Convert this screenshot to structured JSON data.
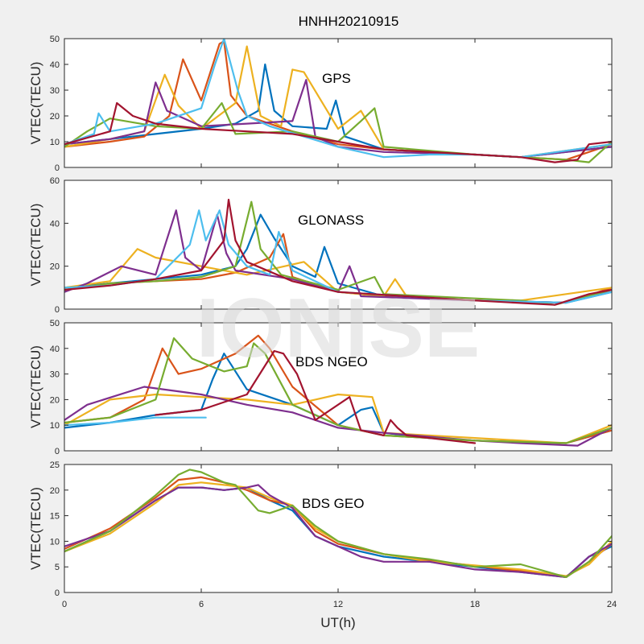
{
  "figure": {
    "title": "HNHH20210915",
    "watermark": "IONISE",
    "xlabel": "UT(h)",
    "ylabel": "VTEC(TECU)"
  },
  "colors": [
    "#0072BD",
    "#D95319",
    "#EDB120",
    "#7E2F8E",
    "#77AC30",
    "#4DBEEE",
    "#A2142F"
  ],
  "chart_data": [
    {
      "type": "line",
      "panel": "GPS",
      "label": "GPS",
      "xlim": [
        0,
        24
      ],
      "ylim": [
        0,
        50
      ],
      "xticks": [
        0,
        6,
        12,
        18,
        24
      ],
      "yticks": [
        0,
        10,
        20,
        30,
        40,
        50
      ],
      "series": [
        {
          "color": "#0072BD",
          "x": [
            0,
            2,
            4,
            6,
            7.5,
            8.5,
            8.8,
            9.2,
            10,
            11.5,
            11.9,
            12.3,
            14,
            18,
            20,
            24
          ],
          "y": [
            9,
            11,
            13,
            15,
            17,
            22,
            40,
            22,
            16,
            15,
            26,
            12,
            7,
            5,
            4,
            8
          ]
        },
        {
          "color": "#D95319",
          "x": [
            0,
            2,
            3.5,
            4.6,
            5.2,
            6,
            6.8,
            7,
            7.3,
            8,
            10,
            12,
            14,
            18,
            20,
            22,
            24
          ],
          "y": [
            8,
            10,
            12,
            20,
            42,
            26,
            48,
            49,
            28,
            20,
            14,
            9,
            7,
            5,
            4,
            3,
            9
          ]
        },
        {
          "color": "#EDB120",
          "x": [
            0,
            2,
            3.5,
            4.4,
            5,
            6,
            7.5,
            8,
            8.6,
            9.5,
            10,
            10.5,
            12,
            13,
            14,
            18,
            20,
            24
          ],
          "y": [
            8,
            11,
            14,
            36,
            24,
            15,
            25,
            47,
            20,
            16,
            38,
            37,
            15,
            22,
            7,
            5,
            4,
            9
          ]
        },
        {
          "color": "#7E2F8E",
          "x": [
            0,
            2,
            3.5,
            4,
            4.5,
            6,
            8,
            10,
            10.6,
            11,
            12,
            14,
            18,
            20,
            24
          ],
          "y": [
            9,
            11,
            14,
            33,
            22,
            16,
            17,
            18,
            34,
            12,
            8,
            6,
            5,
            4,
            8
          ]
        },
        {
          "color": "#77AC30",
          "x": [
            0,
            1,
            2,
            4,
            6,
            6.9,
            7.5,
            10,
            12,
            13,
            13.6,
            14,
            18,
            22,
            23,
            24
          ],
          "y": [
            8,
            14,
            19,
            16,
            15,
            25,
            13,
            14,
            10,
            18,
            23,
            8,
            5,
            3,
            2,
            10
          ]
        },
        {
          "color": "#4DBEEE",
          "x": [
            0,
            1.3,
            1.5,
            2,
            4,
            6,
            6.6,
            7,
            7.6,
            8,
            9,
            12,
            14,
            16,
            18,
            20,
            24
          ],
          "y": [
            9,
            13,
            21,
            14,
            17,
            23,
            40,
            50,
            30,
            20,
            16,
            8,
            4,
            5,
            5,
            4,
            9
          ]
        },
        {
          "color": "#A2142F",
          "x": [
            0,
            2,
            2.3,
            3,
            4,
            6,
            8,
            10,
            12,
            14,
            18,
            20,
            21.5,
            22.5,
            23,
            24
          ],
          "y": [
            9,
            14,
            25,
            20,
            17,
            15,
            14,
            13,
            10,
            7,
            5,
            4,
            2,
            3,
            9,
            10
          ]
        }
      ]
    },
    {
      "type": "line",
      "panel": "GLONASS",
      "label": "GLONASS",
      "xlim": [
        0,
        24
      ],
      "ylim": [
        0,
        60
      ],
      "xticks": [
        0,
        6,
        12,
        18,
        24
      ],
      "yticks": [
        0,
        20,
        40,
        60
      ],
      "series": [
        {
          "color": "#0072BD",
          "x": [
            0,
            2,
            4,
            6,
            7.5,
            8,
            8.6,
            9.2,
            10,
            11,
            11.4,
            12,
            14,
            18,
            22,
            24
          ],
          "y": [
            10,
            12,
            14,
            16,
            20,
            28,
            44,
            33,
            20,
            15,
            29,
            12,
            6,
            4,
            3,
            8
          ]
        },
        {
          "color": "#D95319",
          "x": [
            0,
            2,
            4,
            6,
            7.5,
            9,
            9.6,
            10,
            12,
            14,
            18,
            22,
            24
          ],
          "y": [
            9,
            12,
            13,
            14,
            17,
            24,
            35,
            15,
            8,
            6,
            4,
            3,
            10
          ]
        },
        {
          "color": "#EDB120",
          "x": [
            0,
            2,
            3.2,
            4,
            6,
            8,
            10.5,
            12,
            14,
            14.5,
            15,
            18,
            20,
            24
          ],
          "y": [
            10,
            13,
            28,
            24,
            20,
            16,
            22,
            8,
            6,
            14,
            6,
            4,
            4,
            10
          ]
        },
        {
          "color": "#7E2F8E",
          "x": [
            0,
            1,
            2.5,
            4,
            4.9,
            5.3,
            6,
            6.7,
            7.1,
            7.5,
            10,
            12,
            12.5,
            13,
            18,
            22,
            24
          ],
          "y": [
            8,
            12,
            20,
            16,
            46,
            24,
            18,
            44,
            26,
            18,
            14,
            8,
            20,
            6,
            4,
            3,
            9
          ]
        },
        {
          "color": "#77AC30",
          "x": [
            0,
            2,
            4,
            6,
            7.5,
            8.2,
            8.6,
            9.5,
            12,
            13.6,
            14,
            18,
            20,
            21.5,
            24
          ],
          "y": [
            9,
            12,
            13,
            15,
            20,
            50,
            28,
            16,
            9,
            15,
            7,
            5,
            4,
            2,
            9
          ]
        },
        {
          "color": "#4DBEEE",
          "x": [
            0,
            2,
            4,
            5.5,
            5.9,
            6.2,
            6.8,
            7.2,
            8,
            9,
            9.4,
            10,
            12,
            18,
            22,
            24
          ],
          "y": [
            10,
            11,
            14,
            30,
            46,
            32,
            46,
            30,
            20,
            16,
            36,
            18,
            8,
            4,
            3,
            8
          ]
        },
        {
          "color": "#A2142F",
          "x": [
            0,
            2,
            4,
            6,
            7,
            7.2,
            7.5,
            8,
            10,
            12,
            18,
            21.5,
            23,
            24
          ],
          "y": [
            9,
            11,
            14,
            18,
            32,
            51,
            32,
            22,
            13,
            8,
            4,
            2,
            7,
            9
          ]
        }
      ]
    },
    {
      "type": "line",
      "panel": "BDS NGEO",
      "label": "BDS NGEO",
      "xlim": [
        0,
        24
      ],
      "ylim": [
        0,
        50
      ],
      "xticks": [
        0,
        6,
        12,
        18,
        24
      ],
      "yticks": [
        0,
        10,
        20,
        30,
        40,
        50
      ],
      "series": [
        {
          "color": "#0072BD",
          "x": [
            0,
            2,
            4,
            6,
            6.5,
            7,
            8,
            10,
            12,
            13,
            13.5,
            14,
            16,
            18,
            22,
            24
          ],
          "y": [
            9,
            11,
            14,
            16,
            28,
            38,
            24,
            18,
            10,
            16,
            17,
            7,
            5,
            4,
            3,
            8
          ]
        },
        {
          "color": "#D95319",
          "x": [
            0,
            2,
            3.5,
            4.3,
            5,
            6,
            7.5,
            8.5,
            9,
            10,
            12,
            14,
            18,
            22,
            24
          ],
          "y": [
            11,
            13,
            20,
            40,
            30,
            32,
            38,
            45,
            40,
            25,
            10,
            6,
            4,
            3,
            8
          ]
        },
        {
          "color": "#EDB120",
          "x": [
            0,
            2,
            4,
            6,
            8,
            10,
            11,
            12,
            13.5,
            14,
            18,
            22,
            24
          ],
          "y": [
            10,
            20,
            22,
            21,
            20,
            18,
            20,
            22,
            21,
            7,
            5,
            3,
            10
          ]
        },
        {
          "color": "#7E2F8E",
          "x": [
            0,
            1,
            3.5,
            6,
            8,
            10,
            12,
            14,
            18,
            20,
            22.5,
            24
          ],
          "y": [
            12,
            18,
            25,
            22,
            18,
            15,
            9,
            7,
            4,
            3,
            2,
            9
          ]
        },
        {
          "color": "#77AC30",
          "x": [
            0,
            2,
            4,
            4.8,
            5.6,
            7,
            8,
            8.3,
            8.8,
            10,
            12,
            14,
            18,
            22,
            24
          ],
          "y": [
            11,
            13,
            20,
            44,
            36,
            31,
            33,
            42,
            38,
            18,
            10,
            6,
            4,
            3,
            9
          ]
        },
        {
          "color": "#4DBEEE",
          "x": [
            0,
            2,
            4,
            6.2
          ],
          "y": [
            10,
            11,
            13,
            13
          ]
        },
        {
          "color": "#A2142F",
          "x": [
            4,
            6,
            8,
            9.2,
            9.6,
            10.2,
            11,
            12.5,
            13,
            14,
            14.3,
            14.6,
            15,
            18
          ],
          "y": [
            14,
            16,
            22,
            39,
            38,
            30,
            12,
            21,
            8,
            6,
            12,
            9,
            6,
            3
          ]
        }
      ]
    },
    {
      "type": "line",
      "panel": "BDS GEO",
      "label": "BDS GEO",
      "xlim": [
        0,
        24
      ],
      "ylim": [
        0,
        25
      ],
      "xticks": [
        0,
        6,
        12,
        18,
        24
      ],
      "yticks": [
        0,
        5,
        10,
        15,
        20,
        25
      ],
      "series": [
        {
          "color": "#0072BD",
          "x": [
            0,
            2,
            4,
            5,
            6,
            7,
            8,
            9,
            10,
            11,
            12,
            14,
            16,
            18,
            20,
            22,
            23,
            24
          ],
          "y": [
            8,
            12,
            18,
            20.5,
            20.5,
            20,
            20.5,
            18,
            16,
            11,
            9,
            7,
            6,
            5,
            4,
            3,
            7,
            9
          ]
        },
        {
          "color": "#D95319",
          "x": [
            0,
            2,
            4,
            5,
            6,
            7,
            8,
            9,
            10,
            11,
            12,
            14,
            16,
            18,
            20,
            22,
            23,
            24
          ],
          "y": [
            8.5,
            12.5,
            18.5,
            22,
            22.5,
            21.5,
            20,
            18,
            17,
            12,
            9.5,
            7.5,
            6.2,
            5.2,
            4.2,
            3,
            6,
            9.5
          ]
        },
        {
          "color": "#EDB120",
          "x": [
            0,
            2,
            4,
            5,
            6,
            7,
            8,
            9,
            10,
            11,
            12,
            14,
            16,
            18,
            20,
            22,
            23,
            24
          ],
          "y": [
            8,
            11.5,
            17.5,
            21,
            21.5,
            21,
            20.5,
            18.5,
            17,
            12.5,
            10,
            7.5,
            6,
            5.3,
            4.5,
            3.2,
            5.5,
            10
          ]
        },
        {
          "color": "#7E2F8E",
          "x": [
            0,
            2,
            4,
            5,
            6,
            7,
            8,
            8.5,
            9,
            10,
            11,
            12,
            13,
            14,
            16,
            18,
            20,
            22,
            23,
            24
          ],
          "y": [
            9,
            12,
            18,
            20.5,
            20.5,
            20,
            20.5,
            21,
            19,
            16.5,
            11,
            9,
            7,
            6,
            6,
            4.5,
            4,
            3,
            7,
            9.5
          ]
        },
        {
          "color": "#77AC30",
          "x": [
            0,
            2,
            4,
            5,
            5.5,
            6,
            7,
            7.5,
            8,
            8.5,
            9,
            10,
            11,
            12,
            14,
            16,
            18,
            20,
            22,
            23,
            24
          ],
          "y": [
            8,
            12,
            19,
            23,
            24,
            23.5,
            21.5,
            21,
            18.5,
            16,
            15.5,
            17,
            13,
            10,
            7.5,
            6.5,
            5,
            5.5,
            3,
            6,
            11
          ]
        }
      ]
    }
  ]
}
